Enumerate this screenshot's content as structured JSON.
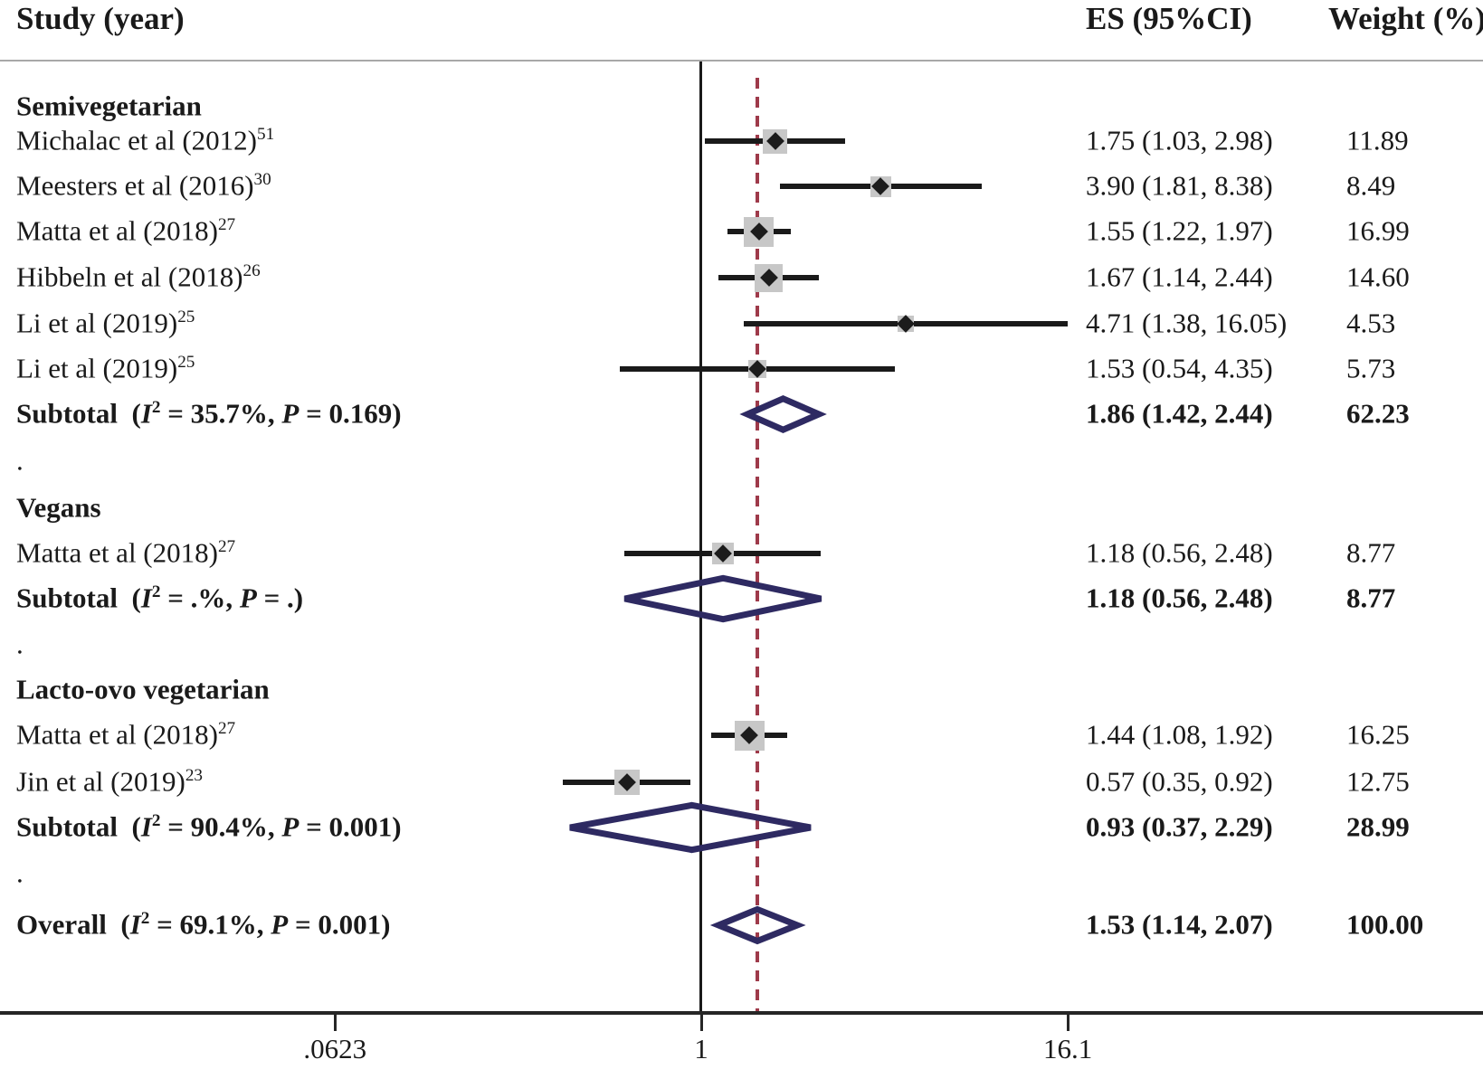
{
  "colors": {
    "text": "#1a1a1a",
    "header_rule": "#a8a8a8",
    "axis_line": "#262626",
    "ci_line": "#1a1a1a",
    "point_marker": "#1c1c1c",
    "weight_box": "#c7c7c7",
    "summary_diamond": "#2e2a62",
    "overall_dashed_line": "#9e3a4a"
  },
  "chart_data": {
    "type": "forest",
    "columns": {
      "study": "Study (year)",
      "es": "ES (95%CI)",
      "weight": "Weight (%)"
    },
    "x_axis": {
      "scale": "log",
      "null_line": 1.0,
      "overall_line": 1.53,
      "ticks": [
        {
          "label": ".0623",
          "value": 0.0623
        },
        {
          "label": "1",
          "value": 1.0
        },
        {
          "label": "16.1",
          "value": 16.1
        }
      ]
    },
    "separator": ".",
    "groups": [
      {
        "name": "Semivegetarian",
        "studies": [
          {
            "label": "Michalac et al (2012)",
            "ref": "51",
            "es": 1.75,
            "lo": 1.03,
            "hi": 2.98,
            "es_ci": "1.75 (1.03, 2.98)",
            "weight": 11.89,
            "weight_text": "11.89"
          },
          {
            "label": "Meesters et al (2016)",
            "ref": "30",
            "es": 3.9,
            "lo": 1.81,
            "hi": 8.38,
            "es_ci": "3.90 (1.81, 8.38)",
            "weight": 8.49,
            "weight_text": "8.49"
          },
          {
            "label": "Matta et al (2018)",
            "ref": "27",
            "es": 1.55,
            "lo": 1.22,
            "hi": 1.97,
            "es_ci": "1.55 (1.22, 1.97)",
            "weight": 16.99,
            "weight_text": "16.99"
          },
          {
            "label": "Hibbeln et al (2018)",
            "ref": "26",
            "es": 1.67,
            "lo": 1.14,
            "hi": 2.44,
            "es_ci": "1.67 (1.14, 2.44)",
            "weight": 14.6,
            "weight_text": "14.60"
          },
          {
            "label": "Li et al (2019)",
            "ref": "25",
            "es": 4.71,
            "lo": 1.38,
            "hi": 16.05,
            "es_ci": "4.71 (1.38, 16.05)",
            "weight": 4.53,
            "weight_text": "4.53"
          },
          {
            "label": "Li et al (2019)",
            "ref": "25",
            "es": 1.53,
            "lo": 0.54,
            "hi": 4.35,
            "es_ci": "1.53 (0.54, 4.35)",
            "weight": 5.73,
            "weight_text": "5.73"
          }
        ],
        "subtotal": {
          "label": "Subtotal",
          "i2": "35.7%",
          "p": "0.169",
          "es": 1.86,
          "lo": 1.42,
          "hi": 2.44,
          "es_ci": "1.86 (1.42, 2.44)",
          "weight_text": "62.23"
        }
      },
      {
        "name": "Vegans",
        "studies": [
          {
            "label": "Matta et al (2018)",
            "ref": "27",
            "es": 1.18,
            "lo": 0.56,
            "hi": 2.48,
            "es_ci": "1.18 (0.56, 2.48)",
            "weight": 8.77,
            "weight_text": "8.77"
          }
        ],
        "subtotal": {
          "label": "Subtotal",
          "i2": ".%",
          "p": ".",
          "es": 1.18,
          "lo": 0.56,
          "hi": 2.48,
          "es_ci": "1.18 (0.56, 2.48)",
          "weight_text": "8.77"
        }
      },
      {
        "name": "Lacto-ovo vegetarian",
        "studies": [
          {
            "label": "Matta et al (2018)",
            "ref": "27",
            "es": 1.44,
            "lo": 1.08,
            "hi": 1.92,
            "es_ci": "1.44 (1.08, 1.92)",
            "weight": 16.25,
            "weight_text": "16.25"
          },
          {
            "label": "Jin et al (2019)",
            "ref": "23",
            "es": 0.57,
            "lo": 0.35,
            "hi": 0.92,
            "es_ci": "0.57 (0.35, 0.92)",
            "weight": 12.75,
            "weight_text": "12.75"
          }
        ],
        "subtotal": {
          "label": "Subtotal",
          "i2": "90.4%",
          "p": "0.001",
          "es": 0.93,
          "lo": 0.37,
          "hi": 2.29,
          "es_ci": "0.93 (0.37, 2.29)",
          "weight_text": "28.99"
        }
      }
    ],
    "overall": {
      "label": "Overall",
      "i2": "69.1%",
      "p": "0.001",
      "es": 1.53,
      "lo": 1.14,
      "hi": 2.07,
      "es_ci": "1.53 (1.14, 2.07)",
      "weight_text": "100.00"
    }
  }
}
